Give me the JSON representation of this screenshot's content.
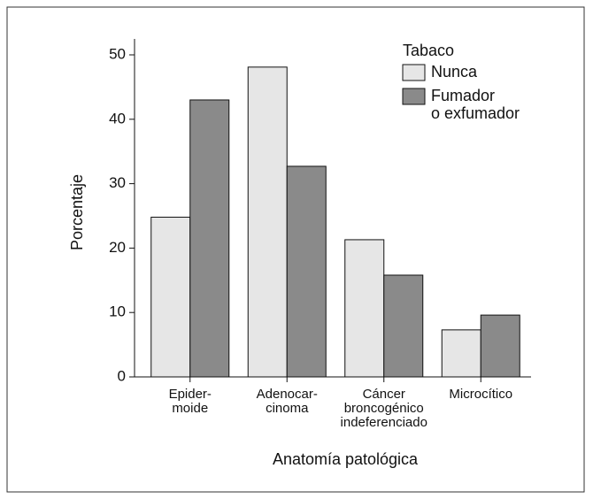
{
  "chart_data": {
    "type": "bar",
    "x_label": "Anatomía patológica",
    "y_label": "Porcentaje",
    "legend_title": "Tabaco",
    "categories": [
      "Epider-\nmoide",
      "Adenocar-\ncinoma",
      "Cáncer\nbroncogénico\nindeferenciado",
      "Microcítico"
    ],
    "series": [
      {
        "name": "Nunca",
        "color": "#e6e6e6",
        "values": [
          24.8,
          48.1,
          21.3,
          7.3
        ]
      },
      {
        "name": "Fumador\no exfumador",
        "color": "#8a8a8a",
        "values": [
          43.0,
          32.7,
          15.8,
          9.6
        ]
      }
    ],
    "ylim": [
      0,
      50
    ],
    "yticks": [
      0,
      10,
      20,
      30,
      40,
      50
    ],
    "grid": false,
    "legend": "upper right"
  }
}
